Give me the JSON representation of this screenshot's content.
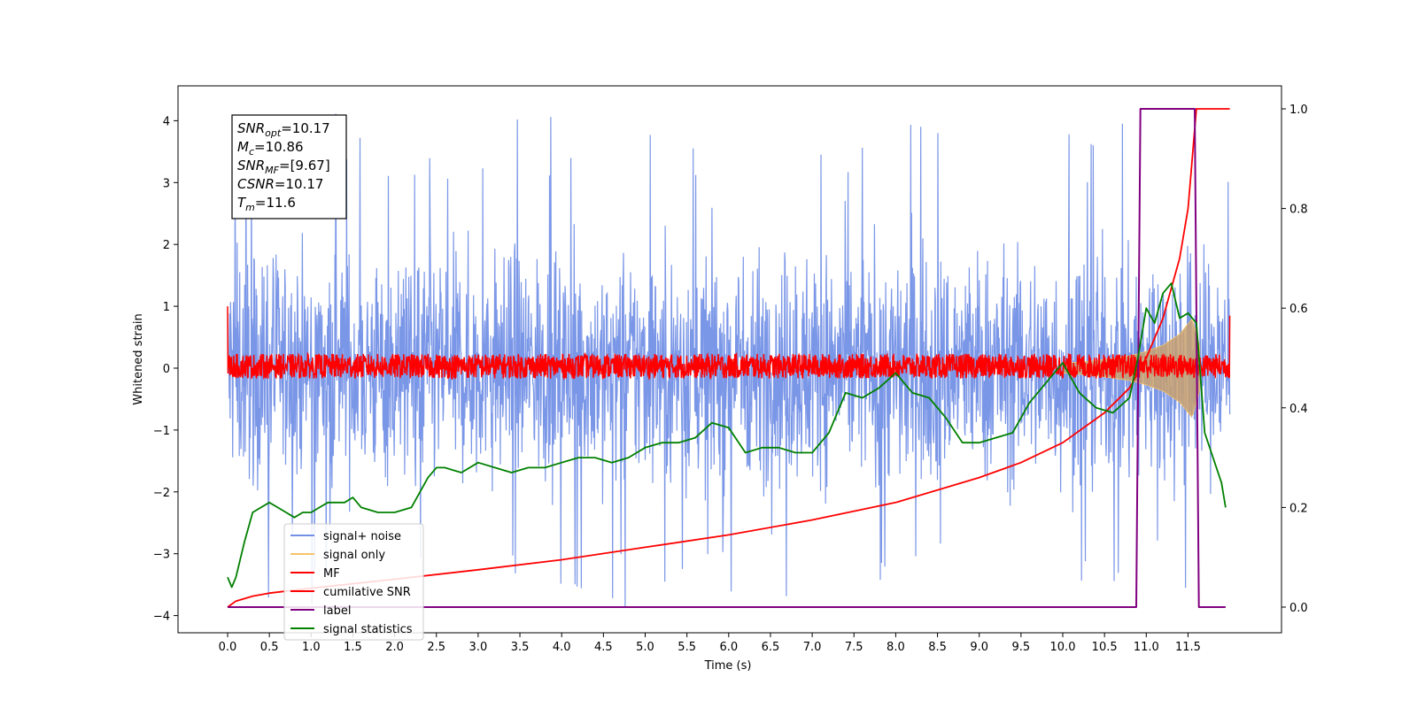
{
  "chart_data": {
    "type": "line",
    "xlabel": "Time (s)",
    "ylabel": "Whitened strain",
    "xlim": [
      -0.6,
      12.2
    ],
    "ylim": [
      -4.3,
      4.55
    ],
    "y2lim": [
      -0.05,
      1.05
    ],
    "x_ticks": [
      "0.0",
      "0.5",
      "1.0",
      "1.5",
      "2.0",
      "2.5",
      "3.0",
      "3.5",
      "4.0",
      "4.5",
      "5.0",
      "5.5",
      "6.0",
      "6.5",
      "7.0",
      "7.5",
      "8.0",
      "8.5",
      "9.0",
      "9.5",
      "10.0",
      "10.5",
      "11.0",
      "11.5"
    ],
    "y_ticks": [
      "4",
      "3",
      "2",
      "1",
      "0",
      "−1",
      "−2",
      "−3",
      "−4"
    ],
    "y2_ticks": [
      "1.0",
      "0.8",
      "0.6",
      "0.4",
      "0.2",
      "0.0"
    ],
    "annotation": [
      {
        "base": "SNR",
        "sub": "opt",
        "value": "=10.17"
      },
      {
        "base": "M",
        "sub": "c",
        "value": "=10.86"
      },
      {
        "base": "SNR",
        "sub": "MF",
        "value": "=[9.67]"
      },
      {
        "base": "CSNR",
        "sub": "",
        "value": "=10.17"
      },
      {
        "base": "T",
        "sub": "m",
        "value": "=11.6"
      }
    ],
    "legend_position": "lower-left",
    "series": [
      {
        "name": "signal+ noise",
        "color": "#7390e6",
        "axis": "left",
        "envelope_upper": 3.0,
        "envelope_lower": -2.7,
        "spikes_up_max": 4.15,
        "spikes_down_min": -3.9,
        "x_range": [
          0.0,
          12.0
        ]
      },
      {
        "name": "signal only",
        "color": "#f5c469",
        "axis": "left",
        "x": [
          10.0,
          10.4,
          10.8,
          11.0,
          11.2,
          11.4,
          11.55,
          11.65
        ],
        "amplitude": [
          0.08,
          0.12,
          0.2,
          0.27,
          0.37,
          0.55,
          0.8,
          0.3
        ]
      },
      {
        "name": "MF",
        "color": "#ff0000",
        "axis": "left",
        "center": 0.0,
        "noise_band": [
          -0.15,
          0.25
        ],
        "start_value": 1.0,
        "end_value": 0.85
      },
      {
        "name": "cumilative SNR",
        "color": "#ff0000",
        "axis": "right",
        "x": [
          0.0,
          0.1,
          0.3,
          0.5,
          1.0,
          2.0,
          3.0,
          4.0,
          5.0,
          6.0,
          7.0,
          8.0,
          9.0,
          9.5,
          10.0,
          10.5,
          10.8,
          11.0,
          11.2,
          11.4,
          11.5,
          11.6,
          11.7,
          12.0
        ],
        "values": [
          0.0,
          0.012,
          0.022,
          0.028,
          0.038,
          0.056,
          0.075,
          0.095,
          0.12,
          0.145,
          0.175,
          0.21,
          0.26,
          0.29,
          0.33,
          0.39,
          0.44,
          0.5,
          0.58,
          0.7,
          0.8,
          1.0,
          1.0,
          1.0
        ]
      },
      {
        "name": "label",
        "color": "#800080",
        "axis": "right",
        "x": [
          0.0,
          10.88,
          10.93,
          11.58,
          11.63,
          11.95
        ],
        "values": [
          0.0,
          0.0,
          1.0,
          1.0,
          0.0,
          0.0
        ]
      },
      {
        "name": "signal statistics",
        "color": "#008000",
        "axis": "right",
        "x": [
          0.0,
          0.05,
          0.1,
          0.2,
          0.3,
          0.4,
          0.5,
          0.6,
          0.7,
          0.8,
          0.9,
          1.0,
          1.1,
          1.2,
          1.4,
          1.5,
          1.6,
          1.8,
          2.0,
          2.2,
          2.3,
          2.4,
          2.5,
          2.6,
          2.8,
          3.0,
          3.2,
          3.4,
          3.6,
          3.8,
          4.0,
          4.2,
          4.4,
          4.6,
          4.8,
          5.0,
          5.2,
          5.4,
          5.6,
          5.8,
          6.0,
          6.2,
          6.4,
          6.6,
          6.8,
          7.0,
          7.2,
          7.4,
          7.6,
          7.8,
          8.0,
          8.2,
          8.4,
          8.6,
          8.8,
          9.0,
          9.2,
          9.4,
          9.6,
          9.8,
          10.0,
          10.2,
          10.4,
          10.6,
          10.8,
          10.9,
          11.0,
          11.1,
          11.2,
          11.3,
          11.4,
          11.5,
          11.6,
          11.7,
          11.8,
          11.9,
          11.95
        ],
        "values": [
          0.06,
          0.04,
          0.06,
          0.13,
          0.19,
          0.2,
          0.21,
          0.2,
          0.19,
          0.18,
          0.19,
          0.19,
          0.2,
          0.21,
          0.21,
          0.22,
          0.2,
          0.19,
          0.19,
          0.2,
          0.23,
          0.26,
          0.28,
          0.28,
          0.27,
          0.29,
          0.28,
          0.27,
          0.28,
          0.28,
          0.29,
          0.3,
          0.3,
          0.29,
          0.3,
          0.32,
          0.33,
          0.33,
          0.34,
          0.37,
          0.36,
          0.31,
          0.32,
          0.32,
          0.31,
          0.31,
          0.35,
          0.43,
          0.42,
          0.44,
          0.47,
          0.43,
          0.42,
          0.38,
          0.33,
          0.33,
          0.34,
          0.35,
          0.41,
          0.45,
          0.49,
          0.43,
          0.4,
          0.39,
          0.42,
          0.5,
          0.6,
          0.57,
          0.63,
          0.65,
          0.58,
          0.59,
          0.57,
          0.35,
          0.3,
          0.25,
          0.2
        ]
      }
    ]
  }
}
